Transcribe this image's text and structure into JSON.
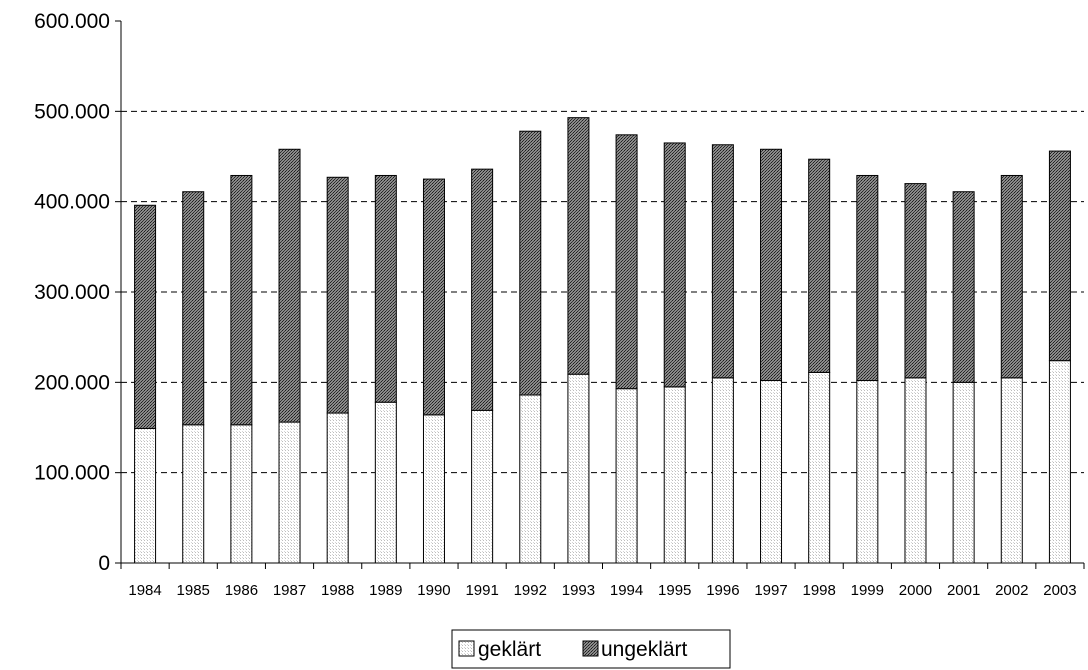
{
  "chart_data": {
    "type": "bar",
    "stacked": true,
    "categories": [
      "1984",
      "1985",
      "1986",
      "1987",
      "1988",
      "1989",
      "1990",
      "1991",
      "1992",
      "1993",
      "1994",
      "1995",
      "1996",
      "1997",
      "1998",
      "1999",
      "2000",
      "2001",
      "2002",
      "2003"
    ],
    "series": [
      {
        "name": "geklärt",
        "values": [
          149000,
          153000,
          153000,
          156000,
          166000,
          178000,
          164000,
          169000,
          186000,
          209000,
          193000,
          195000,
          205000,
          202000,
          211000,
          202000,
          205000,
          200000,
          205000,
          224000
        ]
      },
      {
        "name": "ungeklärt",
        "values": [
          247000,
          258000,
          276000,
          302000,
          261000,
          251000,
          261000,
          267000,
          292000,
          284000,
          281000,
          270000,
          258000,
          256000,
          236000,
          227000,
          215000,
          211000,
          224000,
          232000
        ]
      }
    ],
    "y_ticks": [
      "0",
      "100.000",
      "200.000",
      "300.000",
      "400.000",
      "500.000",
      "600.000"
    ],
    "ylim": [
      0,
      600000
    ],
    "grid": "horizontal dashed",
    "legend_position": "bottom-center",
    "colors": {
      "geklärt": "#f2f2f2",
      "ungeklärt": "#6a6a6a"
    }
  }
}
